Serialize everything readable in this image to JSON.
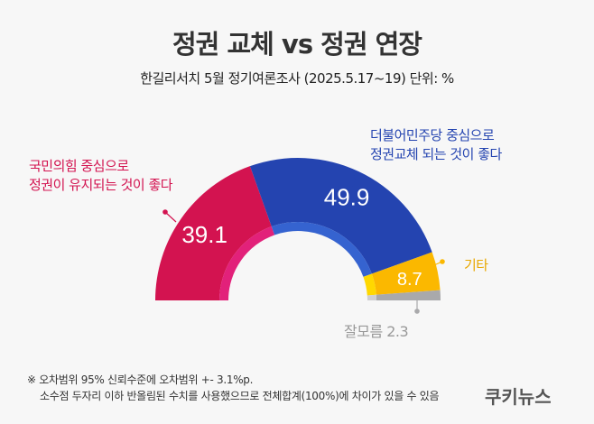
{
  "title": "정권 교체 vs 정권 연장",
  "subtitle": "한길리서치 5월 정기여론조사 (2025.5.17~19) 단위: %",
  "chart_data": {
    "type": "pie",
    "variant": "semi-donut",
    "unit": "%",
    "slices": [
      {
        "label": "국민의힘 중심으로 정권이 유지되는 것이 좋다",
        "label_lines": [
          "국민의힘 중심으로",
          "정권이 유지되는 것이 좋다"
        ],
        "value": 39.1,
        "value_label": "39.1",
        "color": "#d31350",
        "inner_color": "#e2217a"
      },
      {
        "label": "더불어민주당 중심으로 정권교체 되는 것이 좋다",
        "label_lines": [
          "더불어민주당 중심으로",
          "정권교체 되는 것이 좋다"
        ],
        "value": 49.9,
        "value_label": "49.9",
        "color": "#2444b0",
        "inner_color": "#3563d0"
      },
      {
        "label": "기타",
        "label_lines": [
          "기타"
        ],
        "value": 8.7,
        "value_label": "8.7",
        "color": "#fbb800",
        "inner_color": "#ffd800"
      },
      {
        "label": "잘모름",
        "label_lines": [
          "잘모름 2.3"
        ],
        "value": 2.3,
        "value_label": "",
        "color": "#a9a9ab",
        "inner_color": "#cfcfd1"
      }
    ]
  },
  "notes": [
    "※ 오차범위 95% 신뢰수준에 오차범위 +- 3.1%p.",
    "소수점 두자리 이하 반올림된 수치를 사용했으므로 전체합계(100%)에 차이가 있을 수 있음"
  ],
  "logo": "쿠키뉴스"
}
